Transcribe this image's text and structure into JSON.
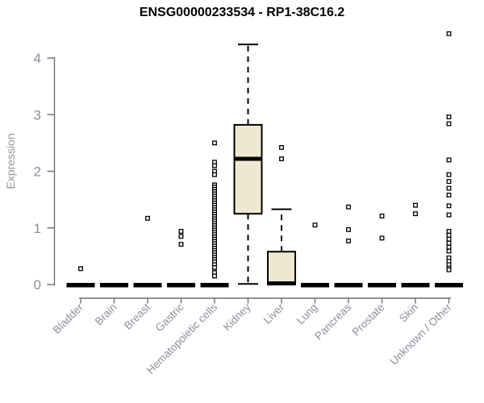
{
  "chart_data": {
    "type": "boxplot",
    "title": "ENSG00000233534 - RP1-38C16.2",
    "ylabel": "Expression",
    "xlabel": "",
    "ylim": [
      0,
      4.43
    ],
    "yticks": [
      "0",
      "1",
      "2",
      "3",
      "4"
    ],
    "grid": false,
    "legend": "none",
    "categories": [
      "Bladder",
      "Brain",
      "Breast",
      "Gastric",
      "Hematopoietic cells",
      "Kidney",
      "Liver",
      "Lung",
      "Pancreas",
      "Prostate",
      "Skin",
      "Unknown / Other"
    ],
    "boxes": [
      {
        "category": "Bladder",
        "q1": 0,
        "median": 0,
        "q3": 0,
        "whisker_low": 0,
        "whisker_high": 0,
        "outliers": [
          0.28
        ]
      },
      {
        "category": "Brain",
        "q1": 0,
        "median": 0,
        "q3": 0,
        "whisker_low": 0,
        "whisker_high": 0,
        "outliers": []
      },
      {
        "category": "Breast",
        "q1": 0,
        "median": 0,
        "q3": 0,
        "whisker_low": 0,
        "whisker_high": 0,
        "outliers": [
          1.17
        ]
      },
      {
        "category": "Gastric",
        "q1": 0,
        "median": 0,
        "q3": 0,
        "whisker_low": 0,
        "whisker_high": 0,
        "outliers": [
          0.94,
          0.85,
          0.71
        ]
      },
      {
        "category": "Hematopoietic cells",
        "q1": 0,
        "median": 0,
        "q3": 0,
        "whisker_low": 0,
        "whisker_high": 0,
        "outliers": [
          2.5,
          2.16,
          2.1,
          2.0,
          1.94,
          1.76,
          1.72,
          1.68,
          1.64,
          1.6,
          1.56,
          1.52,
          1.48,
          1.44,
          1.4,
          1.36,
          1.32,
          1.28,
          1.24,
          1.2,
          1.16,
          1.12,
          1.08,
          1.04,
          1.0,
          0.96,
          0.92,
          0.88,
          0.84,
          0.8,
          0.76,
          0.72,
          0.68,
          0.64,
          0.6,
          0.56,
          0.52,
          0.48,
          0.44,
          0.4,
          0.35,
          0.3,
          0.21,
          0.15
        ]
      },
      {
        "category": "Kidney",
        "q1": 1.25,
        "median": 2.22,
        "q3": 2.82,
        "whisker_low": 0.01,
        "whisker_high": 4.24,
        "outliers": []
      },
      {
        "category": "Liver",
        "q1": 0,
        "median": 0.02,
        "q3": 0.58,
        "whisker_low": 0,
        "whisker_high": 1.33,
        "outliers": [
          2.42,
          2.22
        ]
      },
      {
        "category": "Lung",
        "q1": 0,
        "median": 0,
        "q3": 0,
        "whisker_low": 0,
        "whisker_high": 0,
        "outliers": [
          1.05
        ]
      },
      {
        "category": "Pancreas",
        "q1": 0,
        "median": 0,
        "q3": 0,
        "whisker_low": 0,
        "whisker_high": 0,
        "outliers": [
          1.37,
          0.97,
          0.77
        ]
      },
      {
        "category": "Prostate",
        "q1": 0,
        "median": 0,
        "q3": 0,
        "whisker_low": 0,
        "whisker_high": 0,
        "outliers": [
          1.21,
          0.82
        ]
      },
      {
        "category": "Skin",
        "q1": 0,
        "median": 0,
        "q3": 0,
        "whisker_low": 0,
        "whisker_high": 0,
        "outliers": [
          1.4,
          1.25
        ]
      },
      {
        "category": "Unknown / Other",
        "q1": 0,
        "median": 0,
        "q3": 0,
        "whisker_low": 0,
        "whisker_high": 0,
        "outliers": [
          4.43,
          2.96,
          2.84,
          2.2,
          1.94,
          1.82,
          1.7,
          1.58,
          1.39,
          1.23,
          0.94,
          0.87,
          0.8,
          0.73,
          0.66,
          0.59,
          0.47,
          0.41,
          0.35,
          0.29,
          0.26
        ]
      }
    ],
    "colors": {
      "data": "#000000",
      "box_fill": "#EDE8CF",
      "axis": "#6f6f6f",
      "tick_label": "#8a8f9b",
      "axis_title": "#969696",
      "title": "#000000",
      "background": "#ffffff"
    }
  }
}
